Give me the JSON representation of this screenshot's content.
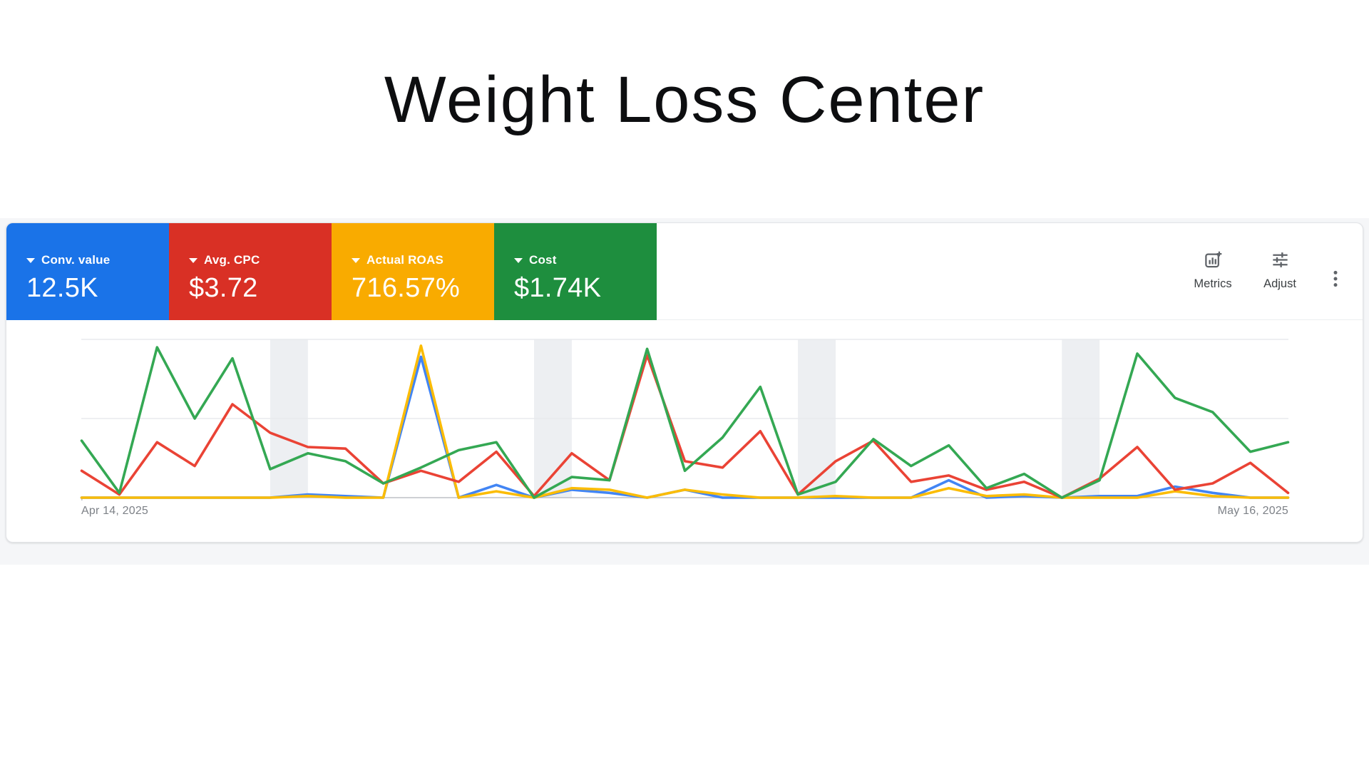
{
  "page_title": "Weight Loss Center",
  "card": {
    "metric_tiles": [
      {
        "label": "Conv. value",
        "value": "12.5K",
        "color": "#1A73E8"
      },
      {
        "label": "Avg. CPC",
        "value": "$3.72",
        "color": "#D93025"
      },
      {
        "label": "Actual ROAS",
        "value": "716.57%",
        "color": "#F9AB00"
      },
      {
        "label": "Cost",
        "value": "$1.74K",
        "color": "#1E8E3E"
      }
    ],
    "toolbar": {
      "metrics_label": "Metrics",
      "adjust_label": "Adjust",
      "more_menu_icon": "kebab-vertical"
    }
  },
  "chart_data": {
    "type": "line",
    "title": "",
    "xlabel": "",
    "ylabel": "",
    "x_axis": {
      "start_label": "Apr 14, 2025",
      "end_label": "May 16, 2025",
      "dates": [
        "2025-04-14",
        "2025-04-15",
        "2025-04-16",
        "2025-04-17",
        "2025-04-18",
        "2025-04-19",
        "2025-04-20",
        "2025-04-21",
        "2025-04-22",
        "2025-04-23",
        "2025-04-24",
        "2025-04-25",
        "2025-04-26",
        "2025-04-27",
        "2025-04-28",
        "2025-04-29",
        "2025-04-30",
        "2025-05-01",
        "2025-05-02",
        "2025-05-03",
        "2025-05-04",
        "2025-05-05",
        "2025-05-06",
        "2025-05-07",
        "2025-05-08",
        "2025-05-09",
        "2025-05-10",
        "2025-05-11",
        "2025-05-12",
        "2025-05-13",
        "2025-05-14",
        "2025-05-15",
        "2025-05-16"
      ]
    },
    "y_axis": {
      "labels_visible": false,
      "note": "each metric independently normalized; values are percent of plot height (0 = baseline, 100 = top gridline)",
      "range": [
        0,
        100
      ],
      "gridlines_at": [
        50,
        100
      ]
    },
    "weekend_band_start_indices": [
      5,
      12,
      19,
      26
    ],
    "weekend_band_color": "#edeff2",
    "gridline_color": "#e8eaed",
    "baseline_color": "#bdc1c6",
    "series": [
      {
        "name": "Conv. value",
        "color": "#4285F4",
        "values": [
          0,
          0,
          0,
          0,
          0,
          0,
          2,
          1,
          0,
          89,
          0,
          8,
          0,
          5,
          3,
          0,
          5,
          0,
          0,
          0,
          0,
          0,
          0,
          11,
          0,
          1,
          0,
          1,
          1,
          7,
          3,
          0,
          0
        ]
      },
      {
        "name": "Actual ROAS",
        "color": "#FBBC04",
        "values": [
          0,
          0,
          0,
          0,
          0,
          0,
          1,
          0,
          0,
          96,
          0,
          4,
          0,
          6,
          5,
          0,
          5,
          2,
          0,
          0,
          1,
          0,
          0,
          6,
          1,
          2,
          0,
          0,
          0,
          4,
          1,
          0,
          0
        ]
      },
      {
        "name": "Avg. CPC",
        "color": "#EA4335",
        "values": [
          17,
          2,
          35,
          20,
          59,
          41,
          32,
          31,
          9,
          17,
          10,
          29,
          1,
          28,
          11,
          90,
          23,
          19,
          42,
          2,
          23,
          36,
          10,
          14,
          5,
          10,
          0,
          12,
          32,
          5,
          9,
          22,
          3
        ]
      },
      {
        "name": "Cost",
        "color": "#34A853",
        "values": [
          36,
          3,
          95,
          50,
          88,
          18,
          28,
          23,
          9,
          19,
          30,
          35,
          0,
          13,
          11,
          94,
          17,
          38,
          70,
          2,
          10,
          37,
          20,
          33,
          6,
          15,
          0,
          11,
          91,
          63,
          54,
          29,
          35
        ]
      }
    ],
    "legend_position": "header-tiles"
  }
}
